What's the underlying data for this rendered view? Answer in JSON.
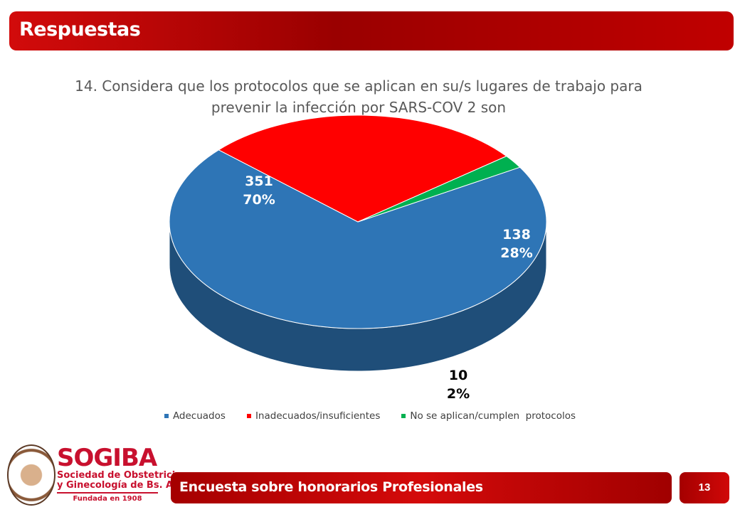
{
  "header": {
    "title": "Respuestas"
  },
  "chart_data": {
    "type": "pie",
    "title_lines": [
      "14. Considera que los protocolos que se aplican en su/s lugares de trabajo para",
      "prevenir la infección por SARS-COV 2 son"
    ],
    "slices": [
      {
        "name": "Adecuados",
        "value": 351,
        "percent": "70%",
        "color": "#2e75b6",
        "side_color": "#1f4e79",
        "label_color": "#ffffff"
      },
      {
        "name": "Inadecuados/insuficientes",
        "value": 138,
        "percent": "28%",
        "color": "#ff0000",
        "side_color": "#8b0000",
        "label_color": "#ffffff"
      },
      {
        "name": "No se aplican/cumplen  protocolos",
        "value": 10,
        "percent": "2%",
        "color": "#00b050",
        "side_color": "#004d23",
        "label_color": "#000000"
      }
    ],
    "legend_position": "bottom"
  },
  "footer": {
    "title": "Encuesta sobre honorarios Profesionales",
    "page_number": "13"
  },
  "logo": {
    "name": "SOGIBA",
    "subtitle_line1": "Sociedad de Obstetricia",
    "subtitle_line2": "y Ginecología de Bs. As.",
    "founded": "Fundada en 1908"
  }
}
